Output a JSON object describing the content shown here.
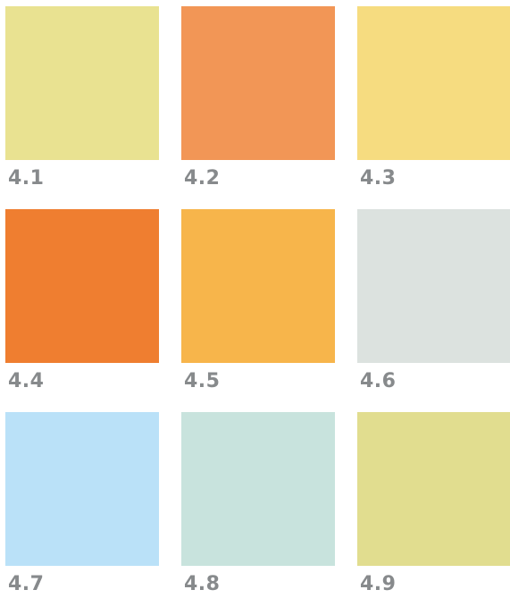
{
  "swatches": [
    {
      "label": "4.1",
      "color": "#e9e291"
    },
    {
      "label": "4.2",
      "color": "#f29656"
    },
    {
      "label": "4.3",
      "color": "#f6dc80"
    },
    {
      "label": "4.4",
      "color": "#ef7e30"
    },
    {
      "label": "4.5",
      "color": "#f7b54b"
    },
    {
      "label": "4.6",
      "color": "#dce2df"
    },
    {
      "label": "4.7",
      "color": "#bae1f8"
    },
    {
      "label": "4.8",
      "color": "#c8e3dd"
    },
    {
      "label": "4.9",
      "color": "#e1dd8f"
    }
  ]
}
